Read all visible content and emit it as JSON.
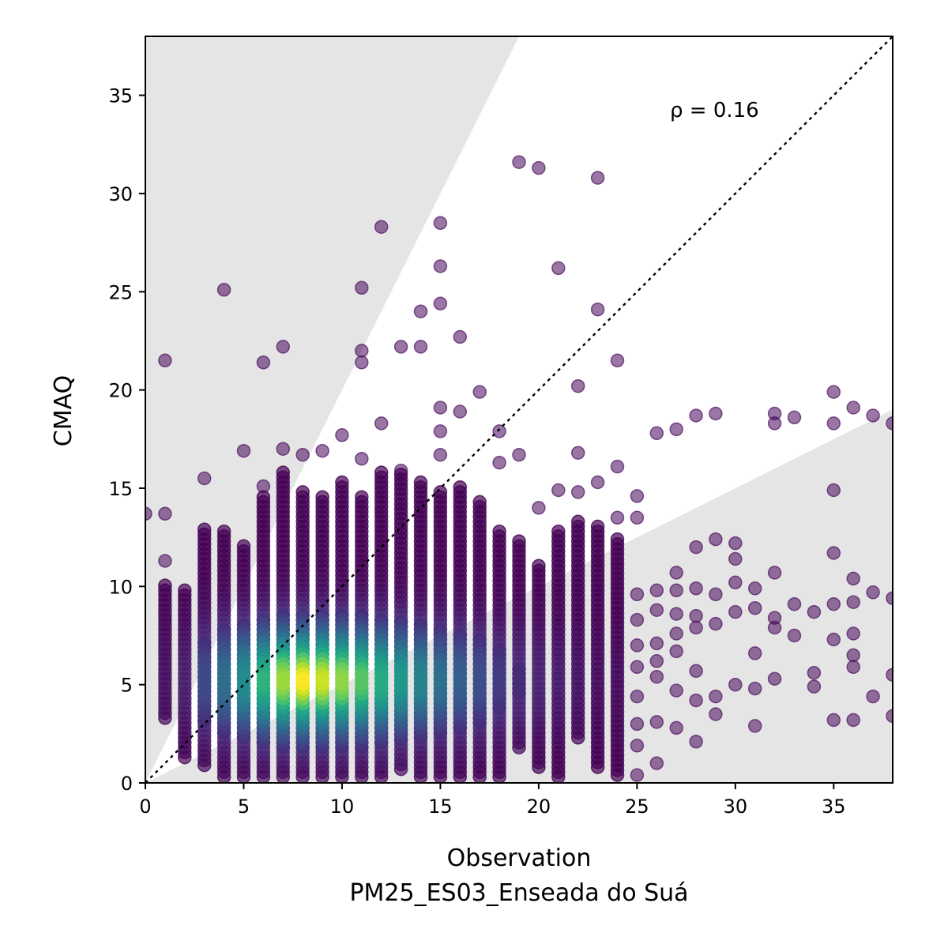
{
  "chart_data": {
    "type": "scatter",
    "title": "",
    "xlabel": "Observation",
    "xlabel_sub": "PM25_ES03_Enseada do Suá",
    "ylabel": "CMAQ",
    "xlim": [
      0,
      38
    ],
    "ylim": [
      0,
      38
    ],
    "xticks": [
      0,
      5,
      10,
      15,
      20,
      25,
      30,
      35
    ],
    "yticks": [
      0,
      5,
      10,
      15,
      20,
      25,
      30,
      35
    ],
    "annotation": "ρ = 0.16",
    "identity_line": true,
    "shaded_band": "factor-of-2 region outside shaded",
    "colormap": "viridis (point density)",
    "point_alpha": 0.6,
    "outliers": [
      [
        0,
        13.7
      ],
      [
        1,
        21.5
      ],
      [
        1,
        13.7
      ],
      [
        1,
        11.3
      ],
      [
        4,
        25.1
      ],
      [
        5,
        16.9
      ],
      [
        3,
        15.5
      ],
      [
        6,
        21.4
      ],
      [
        6,
        15.1
      ],
      [
        7,
        22.2
      ],
      [
        7,
        17.0
      ],
      [
        8,
        16.7
      ],
      [
        9,
        16.9
      ],
      [
        10,
        17.7
      ],
      [
        11,
        25.2
      ],
      [
        11,
        22.0
      ],
      [
        11,
        21.4
      ],
      [
        11,
        16.5
      ],
      [
        12,
        28.3
      ],
      [
        12,
        18.3
      ],
      [
        13,
        22.2
      ],
      [
        13,
        15.9
      ],
      [
        14,
        24.0
      ],
      [
        14,
        22.2
      ],
      [
        15,
        28.5
      ],
      [
        15,
        26.3
      ],
      [
        15,
        24.4
      ],
      [
        15,
        19.1
      ],
      [
        15,
        17.9
      ],
      [
        15,
        16.7
      ],
      [
        16,
        22.7
      ],
      [
        16,
        18.9
      ],
      [
        17,
        19.9
      ],
      [
        18,
        17.9
      ],
      [
        18,
        16.3
      ],
      [
        19,
        31.6
      ],
      [
        19,
        16.7
      ],
      [
        20,
        31.3
      ],
      [
        20,
        14.0
      ],
      [
        21,
        26.2
      ],
      [
        21,
        14.9
      ],
      [
        22,
        20.2
      ],
      [
        22,
        16.8
      ],
      [
        22,
        14.8
      ],
      [
        23,
        30.8
      ],
      [
        23,
        24.1
      ],
      [
        23,
        15.3
      ],
      [
        24,
        21.5
      ],
      [
        24,
        16.1
      ],
      [
        24,
        13.5
      ],
      [
        25,
        14.6
      ],
      [
        25,
        13.5
      ],
      [
        25,
        9.6
      ],
      [
        25,
        8.3
      ],
      [
        25,
        7.0
      ],
      [
        25,
        5.9
      ],
      [
        25,
        4.4
      ],
      [
        25,
        3.0
      ],
      [
        25,
        1.9
      ],
      [
        25,
        0.4
      ],
      [
        26,
        17.8
      ],
      [
        26,
        9.8
      ],
      [
        26,
        8.8
      ],
      [
        26,
        7.1
      ],
      [
        26,
        6.2
      ],
      [
        26,
        5.4
      ],
      [
        26,
        3.1
      ],
      [
        26,
        1.0
      ],
      [
        27,
        18.0
      ],
      [
        27,
        10.7
      ],
      [
        27,
        9.8
      ],
      [
        27,
        8.6
      ],
      [
        27,
        7.6
      ],
      [
        27,
        6.7
      ],
      [
        27,
        4.7
      ],
      [
        27,
        2.8
      ],
      [
        28,
        18.7
      ],
      [
        28,
        12.0
      ],
      [
        28,
        9.9
      ],
      [
        28,
        8.5
      ],
      [
        28,
        7.9
      ],
      [
        28,
        5.7
      ],
      [
        28,
        4.2
      ],
      [
        28,
        2.1
      ],
      [
        29,
        18.8
      ],
      [
        29,
        12.4
      ],
      [
        29,
        9.6
      ],
      [
        29,
        8.1
      ],
      [
        29,
        4.4
      ],
      [
        29,
        3.5
      ],
      [
        30,
        12.2
      ],
      [
        30,
        11.4
      ],
      [
        30,
        10.2
      ],
      [
        30,
        8.7
      ],
      [
        30,
        5.0
      ],
      [
        31,
        9.9
      ],
      [
        31,
        8.9
      ],
      [
        31,
        6.6
      ],
      [
        31,
        4.8
      ],
      [
        31,
        2.9
      ],
      [
        32,
        18.8
      ],
      [
        32,
        18.3
      ],
      [
        32,
        10.7
      ],
      [
        32,
        8.4
      ],
      [
        32,
        7.9
      ],
      [
        32,
        5.3
      ],
      [
        33,
        18.6
      ],
      [
        33,
        9.1
      ],
      [
        33,
        7.5
      ],
      [
        34,
        8.7
      ],
      [
        34,
        5.6
      ],
      [
        34,
        4.9
      ],
      [
        35,
        19.9
      ],
      [
        35,
        18.3
      ],
      [
        35,
        14.9
      ],
      [
        35,
        11.7
      ],
      [
        35,
        9.1
      ],
      [
        35,
        7.3
      ],
      [
        35,
        3.2
      ],
      [
        36,
        19.1
      ],
      [
        36,
        10.4
      ],
      [
        36,
        9.2
      ],
      [
        36,
        7.6
      ],
      [
        36,
        6.5
      ],
      [
        36,
        5.9
      ],
      [
        36,
        3.2
      ],
      [
        37,
        18.7
      ],
      [
        37,
        9.7
      ],
      [
        37,
        4.4
      ],
      [
        38,
        18.3
      ],
      [
        38,
        9.4
      ],
      [
        38,
        5.5
      ],
      [
        38,
        3.4
      ]
    ],
    "density_columns": [
      {
        "x": 1,
        "ymin": 3.3,
        "ymax": 10.2,
        "peak": 0.05
      },
      {
        "x": 2,
        "ymin": 1.3,
        "ymax": 9.8,
        "peak": 0.1
      },
      {
        "x": 3,
        "ymin": 0.9,
        "ymax": 12.9,
        "peak": 0.28
      },
      {
        "x": 4,
        "ymin": 0.3,
        "ymax": 13.0,
        "peak": 0.45
      },
      {
        "x": 5,
        "ymin": 0.3,
        "ymax": 12.2,
        "peak": 0.6
      },
      {
        "x": 6,
        "ymin": 0.3,
        "ymax": 14.6,
        "peak": 0.78
      },
      {
        "x": 7,
        "ymin": 0.3,
        "ymax": 15.8,
        "peak": 0.93
      },
      {
        "x": 8,
        "ymin": 0.3,
        "ymax": 15.0,
        "peak": 1.0
      },
      {
        "x": 9,
        "ymin": 0.3,
        "ymax": 14.6,
        "peak": 0.97
      },
      {
        "x": 10,
        "ymin": 0.3,
        "ymax": 15.4,
        "peak": 0.92
      },
      {
        "x": 11,
        "ymin": 0.3,
        "ymax": 14.6,
        "peak": 0.85
      },
      {
        "x": 12,
        "ymin": 0.3,
        "ymax": 15.8,
        "peak": 0.76
      },
      {
        "x": 13,
        "ymin": 0.7,
        "ymax": 15.9,
        "peak": 0.66
      },
      {
        "x": 14,
        "ymin": 0.3,
        "ymax": 15.4,
        "peak": 0.56
      },
      {
        "x": 15,
        "ymin": 0.3,
        "ymax": 15.0,
        "peak": 0.46
      },
      {
        "x": 16,
        "ymin": 0.3,
        "ymax": 15.1,
        "peak": 0.38
      },
      {
        "x": 17,
        "ymin": 0.3,
        "ymax": 14.4,
        "peak": 0.3
      },
      {
        "x": 18,
        "ymin": 0.3,
        "ymax": 12.8,
        "peak": 0.22
      },
      {
        "x": 19,
        "ymin": 1.8,
        "ymax": 12.4,
        "peak": 0.16
      },
      {
        "x": 20,
        "ymin": 0.8,
        "ymax": 11.2,
        "peak": 0.12
      },
      {
        "x": 21,
        "ymin": 0.3,
        "ymax": 12.8,
        "peak": 0.09
      },
      {
        "x": 22,
        "ymin": 2.3,
        "ymax": 13.4,
        "peak": 0.06
      },
      {
        "x": 23,
        "ymin": 0.8,
        "ymax": 13.2,
        "peak": 0.04
      },
      {
        "x": 24,
        "ymin": 0.4,
        "ymax": 12.5,
        "peak": 0.03
      }
    ]
  }
}
